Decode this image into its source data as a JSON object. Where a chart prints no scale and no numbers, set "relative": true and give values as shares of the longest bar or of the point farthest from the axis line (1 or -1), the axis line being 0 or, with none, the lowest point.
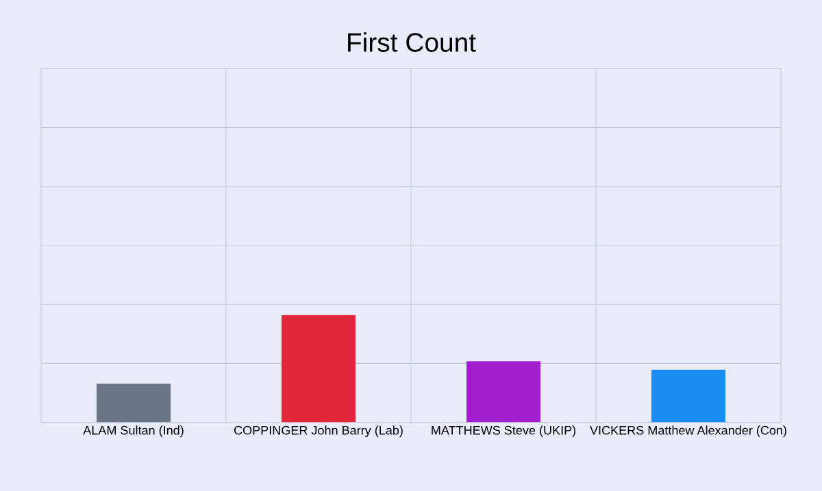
{
  "chart_data": {
    "type": "bar",
    "title": "First Count",
    "relative": true,
    "grid": true,
    "categories": [
      "ALAM Sultan (Ind)",
      "COPPINGER John Barry (Lab)",
      "MATTHEWS Steve (UKIP)",
      "VICKERS Matthew Alexander (Con)"
    ],
    "values": [
      0.36,
      1,
      0.57,
      0.49
    ],
    "colors": [
      "#6b7488",
      "#e0283a",
      "#a020d0",
      "#1a8cf0"
    ]
  }
}
